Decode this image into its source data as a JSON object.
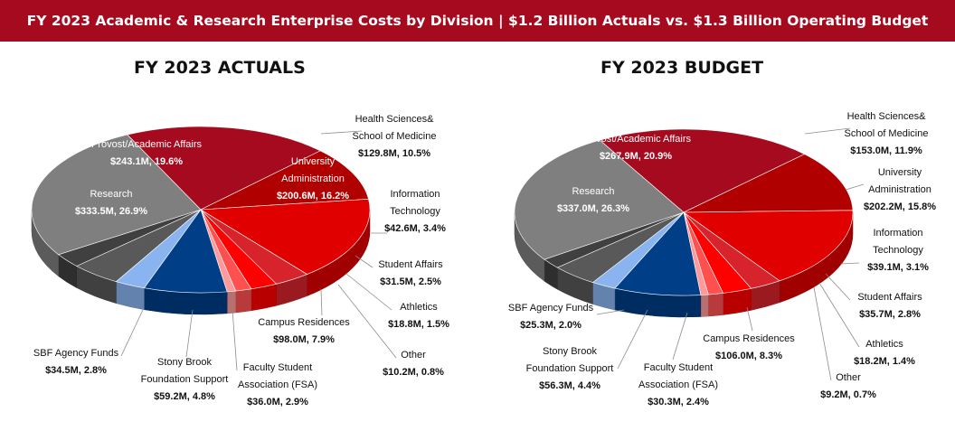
{
  "banner": {
    "title": "FY 2023 Academic & Research Enterprise Costs by Division  | $1.2 Billion  Actuals vs. $1.3 Billion  Operating Budget"
  },
  "colors": {
    "banner": "#a50a1f",
    "research": "#7f7f7f",
    "provost": "#a50a1f",
    "health_sciences": "#b00000",
    "university_administration": "#e00000",
    "information_technology": "#d7242c",
    "student_affairs": "#ff0000",
    "athletics": "#ff5050",
    "other": "#ff9a9a",
    "campus_residences": "#003f87",
    "fsa": "#8ab4f0",
    "foundation": "#595959",
    "sbf": "#404040"
  },
  "chart_data": [
    {
      "type": "pie",
      "title": "FY 2023 ACTUALS",
      "slices": [
        {
          "name": "Provost/Academic Affairs",
          "value": 243.1,
          "value_label": "$243.1M, 19.6%",
          "percent": 19.6,
          "color": "#a50a1f"
        },
        {
          "name": "Health Sciences& School of Medicine",
          "value": 129.8,
          "value_label": "$129.8M, 10.5%",
          "percent": 10.5,
          "color": "#b00000"
        },
        {
          "name": "University Administration",
          "value": 200.6,
          "value_label": "$200.6M, 16.2%",
          "percent": 16.2,
          "color": "#e00000"
        },
        {
          "name": "Information Technology",
          "value": 42.6,
          "value_label": "$42.6M, 3.4%",
          "percent": 3.4,
          "color": "#d7242c"
        },
        {
          "name": "Student Affairs",
          "value": 31.5,
          "value_label": "$31.5M, 2.5%",
          "percent": 2.5,
          "color": "#ff0000"
        },
        {
          "name": "Athletics",
          "value": 18.8,
          "value_label": "$18.8M, 1.5%",
          "percent": 1.5,
          "color": "#ff5050"
        },
        {
          "name": "Other",
          "value": 10.2,
          "value_label": "$10.2M, 0.8%",
          "percent": 0.8,
          "color": "#ff9a9a"
        },
        {
          "name": "Campus Residences",
          "value": 98.0,
          "value_label": "$98.0M, 7.9%",
          "percent": 7.9,
          "color": "#003f87"
        },
        {
          "name": "Faculty Student Association (FSA)",
          "value": 36.0,
          "value_label": "$36.0M, 2.9%",
          "percent": 2.9,
          "color": "#8ab4f0"
        },
        {
          "name": "Stony Brook Foundation Support",
          "value": 59.2,
          "value_label": "$59.2M, 4.8%",
          "percent": 4.8,
          "color": "#595959"
        },
        {
          "name": "SBF Agency Funds",
          "value": 34.5,
          "value_label": "$34.5M, 2.8%",
          "percent": 2.8,
          "color": "#404040"
        },
        {
          "name": "Research",
          "value": 333.5,
          "value_label": "$333.5M, 26.9%",
          "percent": 26.9,
          "color": "#7f7f7f"
        }
      ]
    },
    {
      "type": "pie",
      "title": "FY 2023 BUDGET",
      "slices": [
        {
          "name": "Provost/Academic Affairs",
          "value": 267.9,
          "value_label": "$267.9M, 20.9%",
          "percent": 20.9,
          "color": "#a50a1f"
        },
        {
          "name": "Health Sciences& School of Medicine",
          "value": 153.0,
          "value_label": "$153.0M, 11.9%",
          "percent": 11.9,
          "color": "#b00000"
        },
        {
          "name": "University Administration",
          "value": 202.2,
          "value_label": "$202.2M, 15.8%",
          "percent": 15.8,
          "color": "#e00000"
        },
        {
          "name": "Information Technology",
          "value": 39.1,
          "value_label": "$39.1M, 3.1%",
          "percent": 3.1,
          "color": "#d7242c"
        },
        {
          "name": "Student Affairs",
          "value": 35.7,
          "value_label": "$35.7M, 2.8%",
          "percent": 2.8,
          "color": "#ff0000"
        },
        {
          "name": "Athletics",
          "value": 18.2,
          "value_label": "$18.2M, 1.4%",
          "percent": 1.4,
          "color": "#ff5050"
        },
        {
          "name": "Other",
          "value": 9.2,
          "value_label": "$9.2M, 0.7%",
          "percent": 0.7,
          "color": "#ff9a9a"
        },
        {
          "name": "Campus Residences",
          "value": 106.0,
          "value_label": "$106.0M, 8.3%",
          "percent": 8.3,
          "color": "#003f87"
        },
        {
          "name": "Faculty Student Association (FSA)",
          "value": 30.3,
          "value_label": "$30.3M, 2.4%",
          "percent": 2.4,
          "color": "#8ab4f0"
        },
        {
          "name": "Stony Brook Foundation Support",
          "value": 56.3,
          "value_label": "$56.3M, 4.4%",
          "percent": 4.4,
          "color": "#595959"
        },
        {
          "name": "SBF Agency Funds",
          "value": 25.3,
          "value_label": "$25.3M, 2.0%",
          "percent": 2.0,
          "color": "#404040"
        },
        {
          "name": "Research",
          "value": 337.0,
          "value_label": "$337.0M, 26.3%",
          "percent": 26.3,
          "color": "#7f7f7f"
        }
      ]
    }
  ]
}
